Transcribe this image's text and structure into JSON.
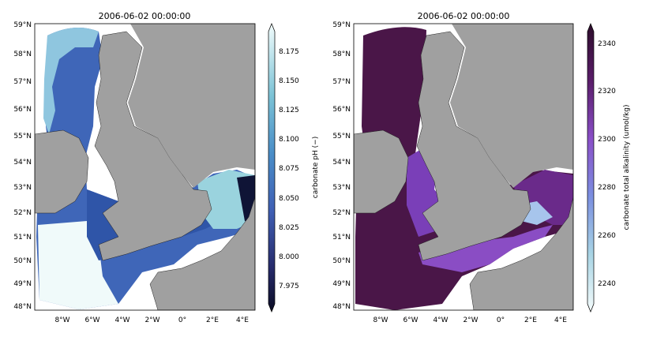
{
  "left_panel": {
    "title": "2006-06-02 00:00:00",
    "colorbar_label": "carbonate pH (−)",
    "colorbar_ticks": [
      "8.175",
      "8.150",
      "8.125",
      "8.100",
      "8.075",
      "8.050",
      "8.025",
      "8.000",
      "7.975"
    ],
    "colorbar_range": [
      7.96,
      8.19
    ]
  },
  "right_panel": {
    "title": "2006-06-02 00:00:00",
    "colorbar_label": "carbonate total alkalinity (umol/kg)",
    "colorbar_ticks": [
      "2340",
      "2320",
      "2300",
      "2280",
      "2260",
      "2240"
    ],
    "colorbar_range": [
      2235,
      2345
    ]
  },
  "axes": {
    "lat_labels": [
      "59°N",
      "58°N",
      "57°N",
      "56°N",
      "55°N",
      "54°N",
      "53°N",
      "52°N",
      "51°N",
      "50°N",
      "49°N",
      "48°N"
    ],
    "lon_labels": [
      "8°W",
      "6°W",
      "4°W",
      "2°W",
      "0°",
      "2°E",
      "4°E"
    ]
  },
  "colors": {
    "land": "#a0a0a0",
    "ph_low": "#0b0c24",
    "ph_mid": "#3f6fc4",
    "ph_high": "#f2fcfc",
    "alk_low": "#f4fbfb",
    "alk_mid": "#7b5ad0",
    "alk_high": "#2c0d2a"
  }
}
